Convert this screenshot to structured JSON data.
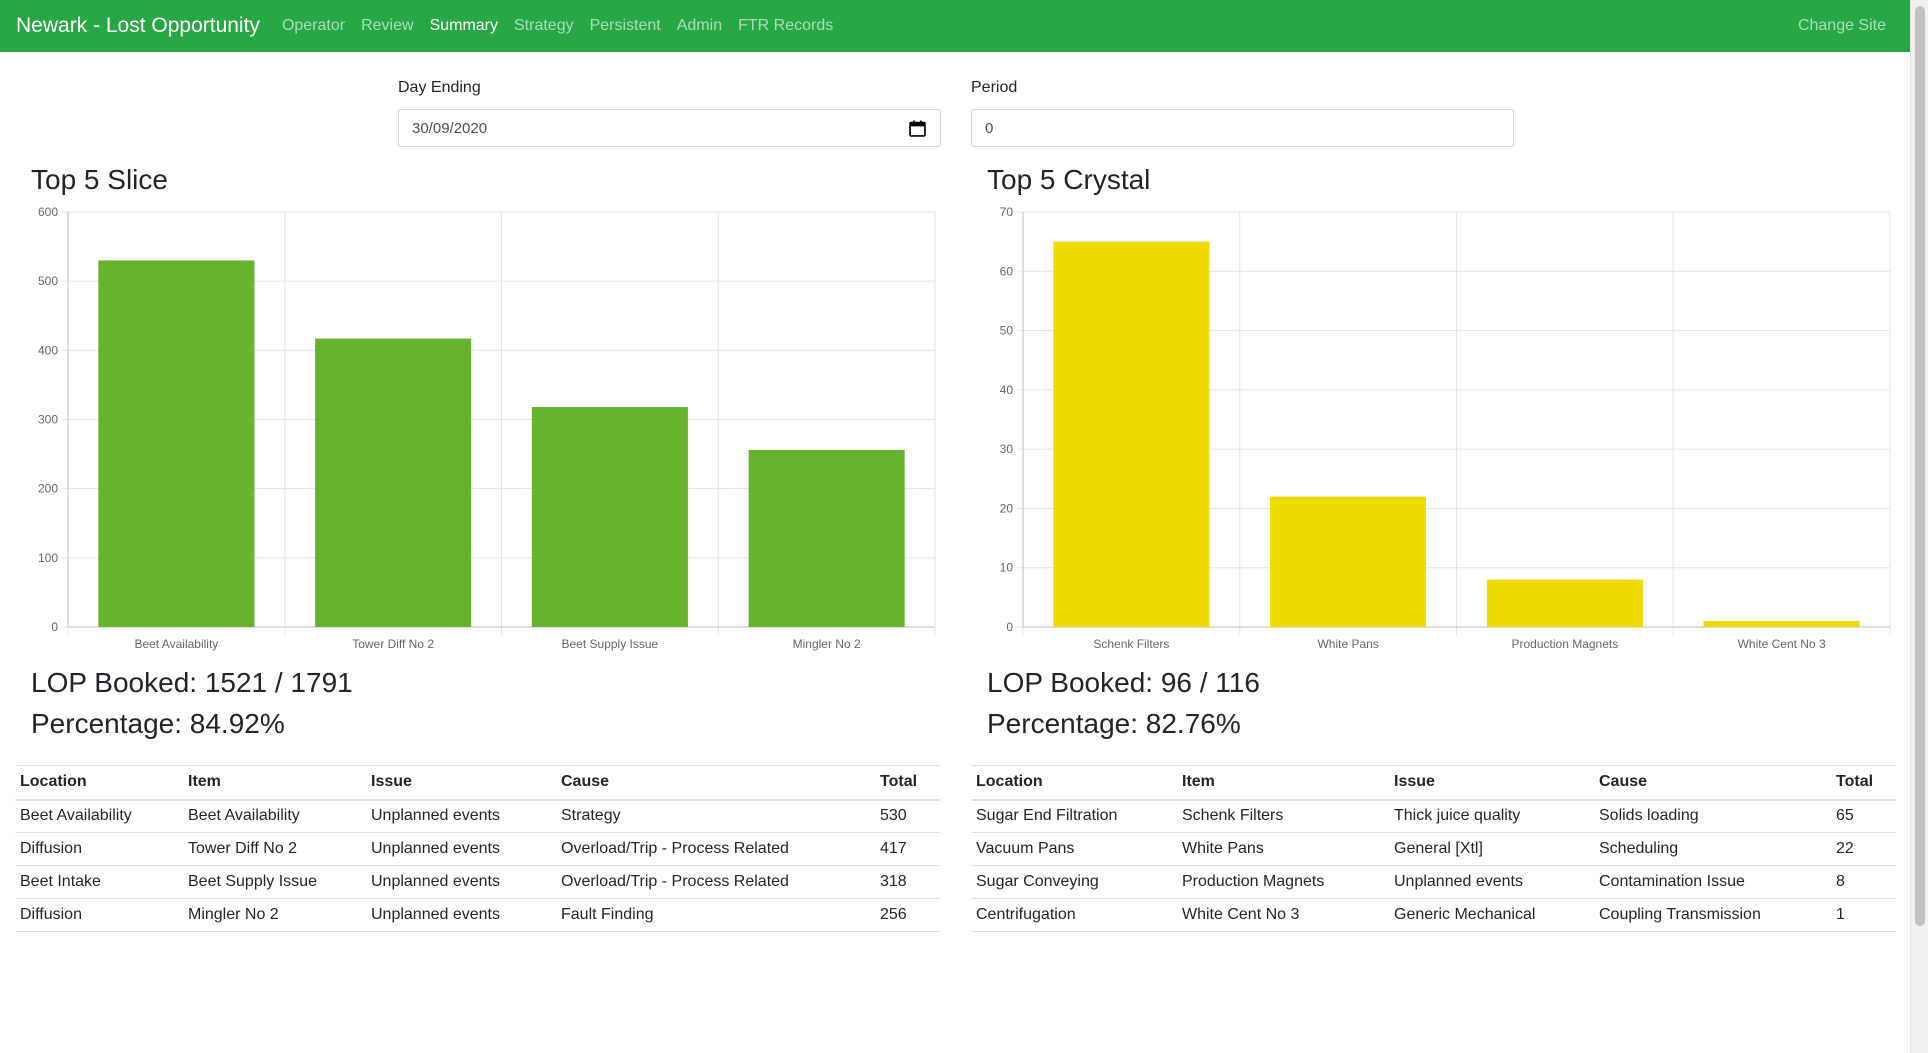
{
  "nav": {
    "brand": "Newark - Lost Opportunity",
    "links": [
      "Operator",
      "Review",
      "Summary",
      "Strategy",
      "Persistent",
      "Admin",
      "FTR Records"
    ],
    "active": "Summary",
    "right": "Change Site",
    "accent_color": "#28a745"
  },
  "filters": {
    "day_ending_label": "Day Ending",
    "day_ending_value": "30/09/2020",
    "period_label": "Period",
    "period_value": "0"
  },
  "slice": {
    "title": "Top 5 Slice",
    "lop_booked": "LOP Booked: 1521 / 1791",
    "percentage": "Percentage: 84.92%",
    "table": {
      "headers": [
        "Location",
        "Item",
        "Issue",
        "Cause",
        "Total"
      ],
      "rows": [
        [
          "Beet Availability",
          "Beet Availability",
          "Unplanned events",
          "Strategy",
          "530"
        ],
        [
          "Diffusion",
          "Tower Diff No 2",
          "Unplanned events",
          "Overload/Trip - Process Related",
          "417"
        ],
        [
          "Beet Intake",
          "Beet Supply Issue",
          "Unplanned events",
          "Overload/Trip - Process Related",
          "318"
        ],
        [
          "Diffusion",
          "Mingler No 2",
          "Unplanned events",
          "Fault Finding",
          "256"
        ]
      ]
    }
  },
  "crystal": {
    "title": "Top 5 Crystal",
    "lop_booked": "LOP Booked: 96 / 116",
    "percentage": "Percentage: 82.76%",
    "table": {
      "headers": [
        "Location",
        "Item",
        "Issue",
        "Cause",
        "Total"
      ],
      "rows": [
        [
          "Sugar End Filtration",
          "Schenk Filters",
          "Thick juice quality",
          "Solids loading",
          "65"
        ],
        [
          "Vacuum Pans",
          "White Pans",
          "General [Xtl]",
          "Scheduling",
          "22"
        ],
        [
          "Sugar Conveying",
          "Production Magnets",
          "Unplanned events",
          "Contamination Issue",
          "8"
        ],
        [
          "Centrifugation",
          "White Cent No 3",
          "Generic Mechanical",
          "Coupling Transmission",
          "1"
        ]
      ]
    }
  },
  "chart_data": [
    {
      "type": "bar",
      "title": "Top 5 Slice",
      "categories": [
        "Beet Availability",
        "Tower Diff No 2",
        "Beet Supply Issue",
        "Mingler No 2"
      ],
      "values": [
        530,
        417,
        318,
        256
      ],
      "yticks": [
        0,
        100,
        200,
        300,
        400,
        500,
        600
      ],
      "ylim": [
        0,
        600
      ],
      "grid": true,
      "color": "#67b22f"
    },
    {
      "type": "bar",
      "title": "Top 5 Crystal",
      "categories": [
        "Schenk Filters",
        "White Pans",
        "Production Magnets",
        "White Cent No 3"
      ],
      "values": [
        65,
        22,
        8,
        1
      ],
      "yticks": [
        0,
        10,
        20,
        30,
        40,
        50,
        60,
        70
      ],
      "ylim": [
        0,
        70
      ],
      "grid": true,
      "color": "#eedc00"
    }
  ]
}
